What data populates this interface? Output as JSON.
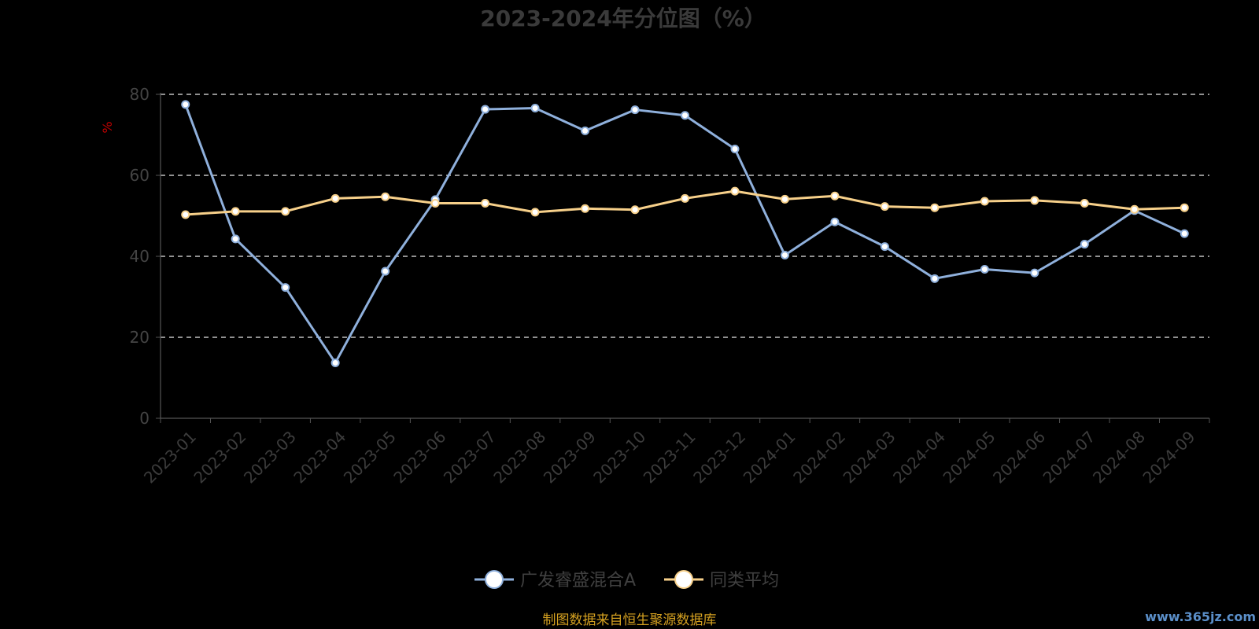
{
  "chart_data": {
    "type": "line",
    "title": "2023-2024年分位图（%）",
    "ylabel": "%",
    "ylim": [
      0,
      80
    ],
    "yticks": [
      0,
      20,
      40,
      60,
      80
    ],
    "grid": true,
    "legend_position": "bottom",
    "categories": [
      "2023-01",
      "2023-02",
      "2023-03",
      "2023-04",
      "2023-05",
      "2023-06",
      "2023-07",
      "2023-08",
      "2023-09",
      "2023-10",
      "2023-11",
      "2023-12",
      "2024-01",
      "2024-02",
      "2024-03",
      "2024-04",
      "2024-05",
      "2024-06",
      "2024-07",
      "2024-08",
      "2024-09"
    ],
    "series": [
      {
        "name": "广发睿盛混合A",
        "color": "#8fb0dc",
        "values": [
          77.5,
          44.3,
          32.3,
          13.7,
          36.3,
          54.0,
          76.3,
          76.6,
          71.0,
          76.2,
          74.8,
          66.5,
          40.3,
          48.5,
          42.4,
          34.5,
          36.8,
          35.9,
          43.0,
          51.3,
          45.6
        ]
      },
      {
        "name": "同类平均",
        "color": "#f7d08a",
        "values": [
          50.3,
          51.1,
          51.1,
          54.3,
          54.7,
          53.1,
          53.1,
          50.9,
          51.8,
          51.5,
          54.3,
          56.1,
          54.1,
          54.9,
          52.3,
          52.0,
          53.6,
          53.8,
          53.1,
          51.6,
          52.0
        ]
      }
    ]
  },
  "footer": {
    "source": "制图数据来自恒生聚源数据库",
    "watermark": "www.365jz.com"
  }
}
